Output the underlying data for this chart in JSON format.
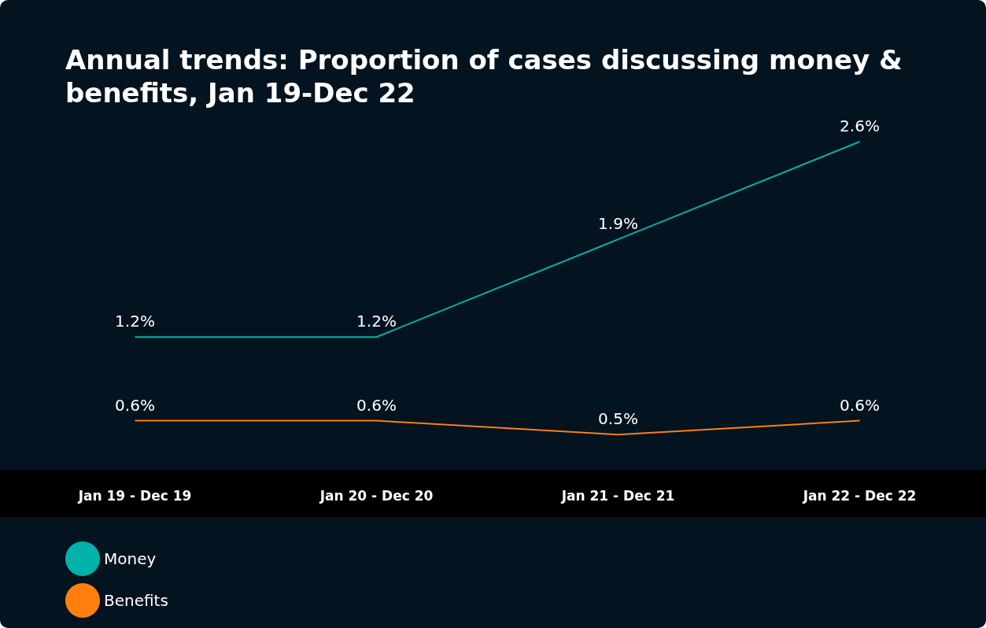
{
  "chart_data": {
    "type": "line",
    "title": "Annual trends: Proportion of cases discussing money & benefits, Jan 19-Dec 22",
    "categories": [
      "Jan 19 - Dec 19",
      "Jan 20 - Dec 20",
      "Jan 21 - Dec 21",
      "Jan 22 - Dec 22"
    ],
    "series": [
      {
        "name": "Money",
        "color": "#00b2a9",
        "values": [
          1.2,
          1.2,
          1.9,
          2.6
        ],
        "value_labels": [
          "1.2%",
          "1.2%",
          "1.9%",
          "2.6%"
        ]
      },
      {
        "name": "Benefits",
        "color": "#ff7f0e",
        "values": [
          0.6,
          0.6,
          0.5,
          0.6
        ],
        "value_labels": [
          "0.6%",
          "0.6%",
          "0.5%",
          "0.6%"
        ]
      }
    ],
    "legend": "bottom left",
    "marker": "none",
    "grid": false
  }
}
